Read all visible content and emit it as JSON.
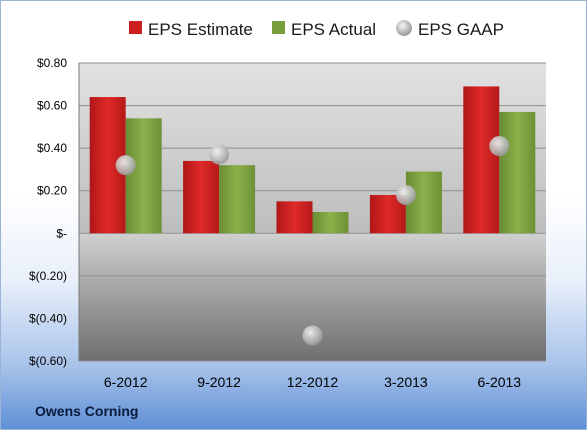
{
  "company": "Owens Corning",
  "chart_data": {
    "type": "bar",
    "categories": [
      "6-2012",
      "9-2012",
      "12-2012",
      "3-2013",
      "6-2013"
    ],
    "series": [
      {
        "name": "EPS Estimate",
        "kind": "bar",
        "color": "#cc1f1f",
        "values": [
          0.64,
          0.34,
          0.15,
          0.18,
          0.69
        ]
      },
      {
        "name": "EPS Actual",
        "kind": "bar",
        "color": "#7a9e3e",
        "values": [
          0.54,
          0.32,
          0.1,
          0.29,
          0.57
        ]
      },
      {
        "name": "EPS GAAP",
        "kind": "scatter",
        "color": "#c9c9c9",
        "values": [
          0.32,
          0.37,
          -0.48,
          0.18,
          0.41
        ]
      }
    ],
    "ylim": [
      -0.6,
      0.8
    ],
    "yticks": [
      0.8,
      0.6,
      0.4,
      0.2,
      0.0,
      -0.2,
      -0.4,
      -0.6
    ],
    "ytick_labels": [
      "$0.80",
      "$0.60",
      "$0.40",
      "$0.20",
      "$-",
      "$(0.20)",
      "$(0.40)",
      "$(0.60)"
    ],
    "grid": true,
    "legend": "top"
  }
}
